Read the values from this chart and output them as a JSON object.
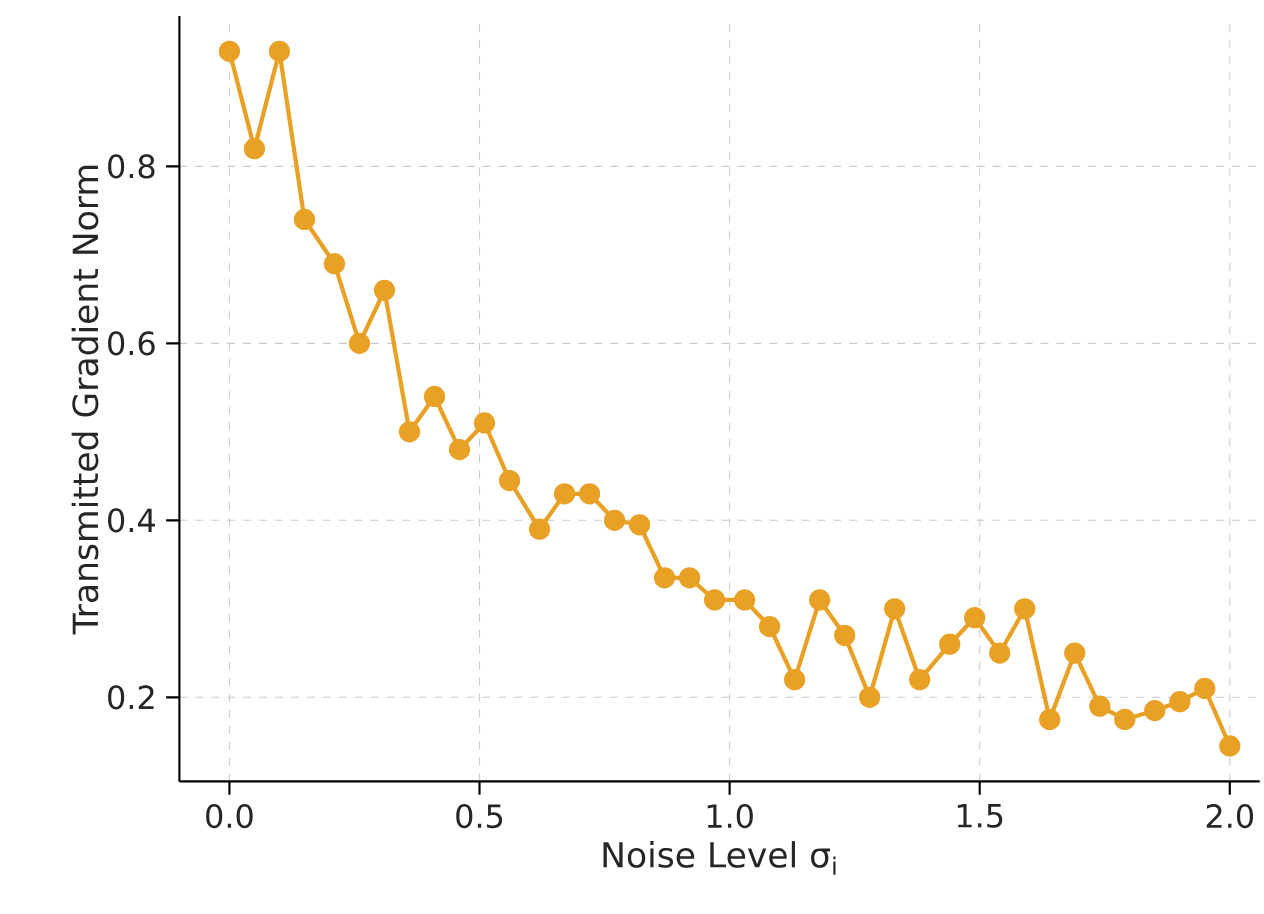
{
  "chart_data": {
    "type": "line",
    "xlabel": "Noise Level σ$_{i}$",
    "ylabel": "Transmitted Gradient Norm",
    "x": [
      0,
      0.05,
      0.1,
      0.15,
      0.21,
      0.26,
      0.31,
      0.36,
      0.41,
      0.46,
      0.51,
      0.56,
      0.62,
      0.67,
      0.72,
      0.77,
      0.82,
      0.87,
      0.92,
      0.97,
      1.03,
      1.08,
      1.13,
      1.18,
      1.23,
      1.28,
      1.33,
      1.38,
      1.44,
      1.49,
      1.54,
      1.59,
      1.64,
      1.69,
      1.74,
      1.79,
      1.85,
      1.9,
      1.95,
      2.0
    ],
    "series": [
      {
        "color": "#e8a025",
        "values": [
          0.93,
          0.82,
          0.93,
          0.74,
          0.69,
          0.6,
          0.66,
          0.5,
          0.54,
          0.48,
          0.51,
          0.445,
          0.39,
          0.43,
          0.43,
          0.4,
          0.395,
          0.335,
          0.335,
          0.31,
          0.31,
          0.28,
          0.22,
          0.31,
          0.27,
          0.2,
          0.3,
          0.22,
          0.26,
          0.29,
          0.25,
          0.3,
          0.175,
          0.25,
          0.19,
          0.175,
          0.185,
          0.195,
          0.21,
          0.145
        ]
      }
    ],
    "xlim": [
      -0.1,
      2.06
    ],
    "ylim": [
      0.105,
      0.97
    ],
    "xticks": [
      {
        "value": 0,
        "label": "0.0"
      },
      0.5,
      {
        "value": 1,
        "label": "1.0"
      },
      1.5,
      {
        "value": 2,
        "label": "2.0"
      }
    ],
    "yticks": [
      0.2,
      0.4,
      0.6,
      0.8
    ],
    "grid": true,
    "marker": "circle",
    "line_style": "solid"
  }
}
